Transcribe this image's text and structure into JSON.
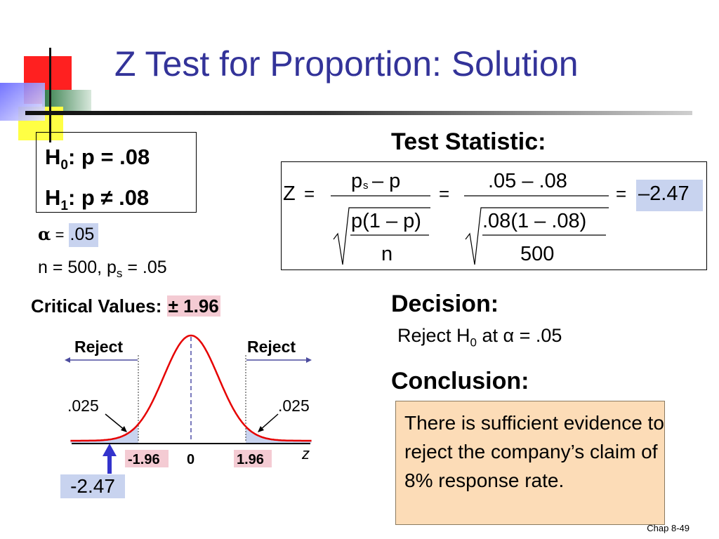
{
  "title": "Z Test for Proportion: Solution",
  "hypotheses": {
    "h0_label": "H",
    "h0_sub": "0",
    "h0_rest": ": p = .08",
    "h1_label": "H",
    "h1_sub": "1",
    "h1_rest": ": p ≠ .08"
  },
  "alpha": {
    "symbol": "α",
    "eq": " = ",
    "value": ".05"
  },
  "sample": {
    "n_text": "n = 500,   p",
    "ps_sub": "s",
    "ps_rest": "  = .05"
  },
  "critical": {
    "label": "Critical Values: ",
    "value": "± 1.96"
  },
  "test_statistic": {
    "heading": "Test Statistic:",
    "z": "Z",
    "eq": "=",
    "num1_p": "p",
    "num1_sub": "s",
    "num1_rest": "– p",
    "den1_top": "p(1 – p)",
    "den1_bottom": "n",
    "num2": ".05 – .08",
    "den2_top": ".08(1 – .08)",
    "den2_bottom": "500",
    "result": "–2.47"
  },
  "decision": {
    "heading": "Decision:",
    "text_a": "Reject H",
    "text_sub": "0",
    "text_b": " at α = .05"
  },
  "conclusion": {
    "heading": "Conclusion:",
    "text": "There is sufficient evidence to reject the company’s claim of 8% response rate."
  },
  "graph": {
    "reject_left": "Reject",
    "reject_right": "Reject",
    "tail_left": ".025",
    "tail_right": ".025",
    "tick_neg": "-1.96",
    "tick_zero": "0",
    "tick_pos": "1.96",
    "axis_label": "z",
    "test_value": "-2.47"
  },
  "footer": "Chap 8-49",
  "colors": {
    "title": "#333399",
    "curve": "#e60000",
    "highlight_blue": "#c8d3ef",
    "highlight_pink": "#f4cbd3",
    "conclusion_bg": "#fcdcb7",
    "arrow": "#3333cc"
  }
}
